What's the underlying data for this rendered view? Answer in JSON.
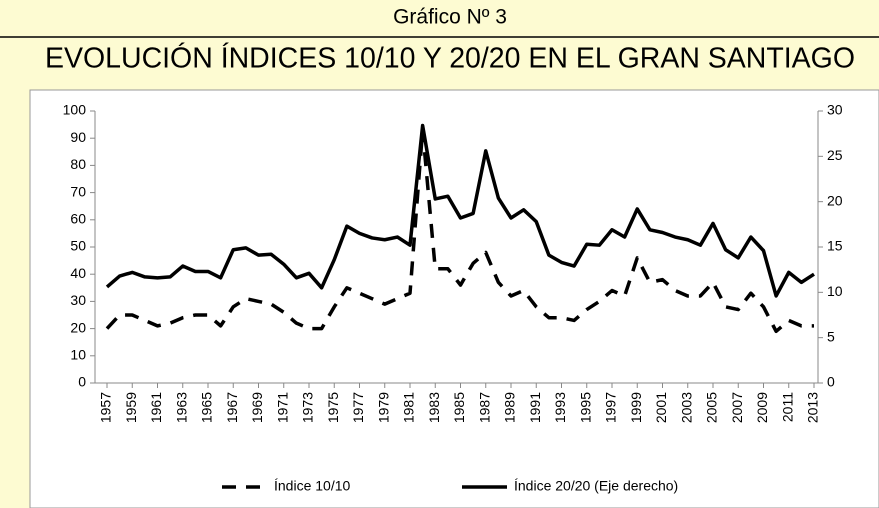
{
  "chart_data": {
    "type": "line",
    "title": "Gráfico Nº 3",
    "subtitle": "EVOLUCIÓN ÍNDICES 10/10 Y 20/20 EN EL GRAN SANTIAGO",
    "x": [
      1957,
      1958,
      1959,
      1960,
      1961,
      1962,
      1963,
      1964,
      1965,
      1966,
      1967,
      1968,
      1969,
      1970,
      1971,
      1972,
      1973,
      1974,
      1975,
      1976,
      1977,
      1978,
      1979,
      1980,
      1981,
      1982,
      1983,
      1984,
      1985,
      1986,
      1987,
      1988,
      1989,
      1990,
      1991,
      1992,
      1993,
      1994,
      1995,
      1996,
      1997,
      1998,
      1999,
      2000,
      2001,
      2002,
      2003,
      2004,
      2005,
      2006,
      2007,
      2008,
      2009,
      2010,
      2011,
      2012,
      2013
    ],
    "xlim": [
      1957,
      2013
    ],
    "xticks": [
      1957,
      1959,
      1961,
      1963,
      1965,
      1967,
      1969,
      1971,
      1973,
      1975,
      1977,
      1979,
      1981,
      1983,
      1985,
      1987,
      1989,
      1991,
      1993,
      1995,
      1997,
      1999,
      2001,
      2003,
      2005,
      2007,
      2009,
      2011,
      2013
    ],
    "ylim": [
      0,
      100
    ],
    "yticks": [
      0,
      10,
      20,
      30,
      40,
      50,
      60,
      70,
      80,
      90,
      100
    ],
    "y2lim": [
      0,
      30
    ],
    "y2ticks": [
      0,
      5,
      10,
      15,
      20,
      25,
      30
    ],
    "series": [
      {
        "name": "Índice 10/10",
        "color": "#000000",
        "style": "dashed",
        "values": [
          20,
          25,
          25,
          23,
          21,
          22,
          24,
          25,
          25,
          21,
          28,
          31,
          30,
          29,
          26,
          22,
          20,
          20,
          28,
          35,
          33,
          31,
          29,
          31,
          33,
          93,
          42,
          42,
          36,
          44,
          48,
          37,
          32,
          34,
          28,
          24,
          24,
          23,
          27,
          30,
          34,
          32,
          46,
          37,
          38,
          34,
          32,
          32,
          37,
          28,
          27,
          33,
          28,
          19,
          23,
          21,
          21
        ]
      },
      {
        "name": "Índice 20/20 (Eje derecho)",
        "color": "#000000",
        "style": "solid",
        "axis": "y2",
        "values": [
          10.6,
          11.8,
          12.2,
          11.7,
          11.6,
          11.7,
          12.9,
          12.3,
          12.3,
          11.6,
          14.7,
          14.9,
          14.1,
          14.2,
          13.1,
          11.6,
          12.1,
          10.5,
          13.6,
          17.3,
          16.5,
          16.0,
          15.8,
          16.1,
          15.2,
          28.4,
          20.3,
          20.6,
          18.2,
          18.7,
          25.6,
          20.4,
          18.2,
          19.1,
          17.8,
          14.1,
          13.3,
          12.9,
          15.3,
          15.2,
          16.9,
          16.1,
          19.2,
          16.9,
          16.6,
          16.1,
          15.8,
          15.2,
          17.6,
          14.7,
          13.8,
          16.1,
          14.6,
          9.6,
          12.2,
          11.1,
          12.0
        ]
      }
    ]
  }
}
